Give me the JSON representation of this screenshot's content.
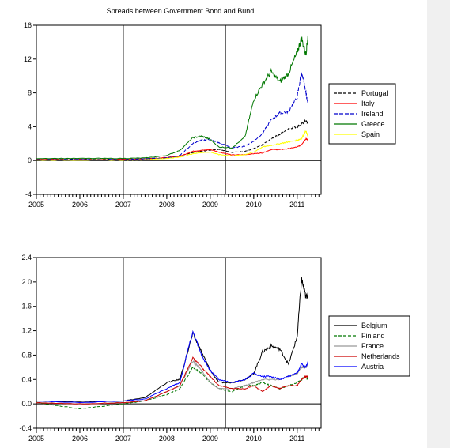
{
  "title": "Spreads between Government Bond and Bund",
  "chart_data": [
    {
      "type": "line",
      "title": "Spreads between Government Bond and Bund",
      "xlim": [
        2005.0,
        2011.55
      ],
      "ylim": [
        -4,
        16
      ],
      "yticks": [
        -4,
        0,
        4,
        8,
        12,
        16
      ],
      "xticks": [
        2005,
        2006,
        2007,
        2008,
        2009,
        2010,
        2011
      ],
      "vlines": [
        2007.0,
        2009.35
      ],
      "grid": false,
      "legend_position": "right",
      "series": [
        {
          "name": "Portugal",
          "color": "#000000",
          "dash": "4,2",
          "x": [
            2005.0,
            2006.0,
            2007.0,
            2007.5,
            2008.0,
            2008.3,
            2008.6,
            2008.8,
            2009.0,
            2009.2,
            2009.5,
            2009.8,
            2010.0,
            2010.2,
            2010.4,
            2010.6,
            2010.8,
            2011.0,
            2011.1,
            2011.2,
            2011.25
          ],
          "y": [
            0.15,
            0.15,
            0.15,
            0.2,
            0.35,
            0.5,
            0.95,
            1.1,
            1.25,
            1.35,
            0.95,
            1.1,
            1.4,
            1.85,
            2.6,
            3.1,
            3.8,
            4.0,
            4.3,
            4.7,
            4.3
          ]
        },
        {
          "name": "Italy",
          "color": "#ff0000",
          "dash": "",
          "x": [
            2005.0,
            2006.0,
            2007.0,
            2007.5,
            2008.0,
            2008.3,
            2008.6,
            2008.8,
            2009.0,
            2009.2,
            2009.5,
            2009.8,
            2010.0,
            2010.2,
            2010.4,
            2010.6,
            2010.8,
            2011.0,
            2011.1,
            2011.2,
            2011.25
          ],
          "y": [
            0.15,
            0.1,
            0.15,
            0.2,
            0.35,
            0.5,
            1.1,
            1.2,
            1.3,
            1.0,
            0.65,
            0.7,
            0.8,
            0.9,
            1.3,
            1.3,
            1.4,
            1.6,
            1.9,
            2.6,
            2.4
          ]
        },
        {
          "name": "Ireland",
          "color": "#0000cc",
          "dash": "5,2",
          "x": [
            2005.0,
            2006.0,
            2007.0,
            2007.5,
            2008.0,
            2008.3,
            2008.6,
            2008.8,
            2009.0,
            2009.2,
            2009.5,
            2009.8,
            2010.0,
            2010.2,
            2010.4,
            2010.6,
            2010.8,
            2011.0,
            2011.1,
            2011.2,
            2011.25
          ],
          "y": [
            0.1,
            0.1,
            0.1,
            0.2,
            0.3,
            0.6,
            2.0,
            2.4,
            2.5,
            2.1,
            1.5,
            1.7,
            2.3,
            3.2,
            4.8,
            5.6,
            5.8,
            7.5,
            10.5,
            8.0,
            6.8
          ]
        },
        {
          "name": "Greece",
          "color": "#007700",
          "dash": "",
          "x": [
            2005.0,
            2006.0,
            2007.0,
            2007.5,
            2008.0,
            2008.3,
            2008.6,
            2008.8,
            2009.0,
            2009.2,
            2009.5,
            2009.8,
            2010.0,
            2010.2,
            2010.4,
            2010.6,
            2010.8,
            2011.0,
            2011.1,
            2011.2,
            2011.25
          ],
          "y": [
            0.25,
            0.25,
            0.25,
            0.3,
            0.6,
            1.2,
            2.7,
            2.9,
            2.5,
            1.6,
            1.5,
            2.8,
            7.2,
            9.0,
            10.5,
            9.3,
            10.3,
            12.8,
            14.5,
            12.5,
            14.8
          ]
        },
        {
          "name": "Spain",
          "color": "#ffff00",
          "dash": "",
          "x": [
            2005.0,
            2006.0,
            2007.0,
            2007.5,
            2008.0,
            2008.3,
            2008.6,
            2008.8,
            2009.0,
            2009.2,
            2009.5,
            2009.8,
            2010.0,
            2010.2,
            2010.4,
            2010.6,
            2010.8,
            2011.0,
            2011.1,
            2011.2,
            2011.25
          ],
          "y": [
            0.05,
            0.05,
            0.05,
            0.1,
            0.25,
            0.4,
            0.8,
            0.95,
            1.0,
            0.7,
            0.55,
            0.7,
            1.0,
            1.6,
            1.8,
            2.0,
            2.2,
            2.4,
            2.6,
            3.5,
            2.8
          ]
        }
      ]
    },
    {
      "type": "line",
      "title": "",
      "xlim": [
        2005.0,
        2011.55
      ],
      "ylim": [
        -0.4,
        2.4
      ],
      "yticks": [
        -0.4,
        0.0,
        0.4,
        0.8,
        1.2,
        1.6,
        2.0,
        2.4
      ],
      "xticks": [
        2005,
        2006,
        2007,
        2008,
        2009,
        2010,
        2011
      ],
      "vlines": [
        2007.0,
        2009.35
      ],
      "grid": false,
      "legend_position": "right",
      "series": [
        {
          "name": "Belgium",
          "color": "#000000",
          "dash": "",
          "x": [
            2005.0,
            2006.0,
            2007.0,
            2007.5,
            2008.0,
            2008.3,
            2008.6,
            2008.8,
            2009.0,
            2009.2,
            2009.5,
            2009.8,
            2010.0,
            2010.2,
            2010.4,
            2010.6,
            2010.8,
            2011.0,
            2011.1,
            2011.2,
            2011.25
          ],
          "y": [
            0.05,
            0.03,
            0.05,
            0.1,
            0.35,
            0.4,
            1.15,
            0.85,
            0.55,
            0.35,
            0.35,
            0.4,
            0.5,
            0.85,
            0.95,
            0.9,
            0.65,
            1.1,
            2.05,
            1.75,
            1.8
          ]
        },
        {
          "name": "Finland",
          "color": "#007700",
          "dash": "4,2",
          "x": [
            2005.0,
            2006.0,
            2007.0,
            2007.5,
            2008.0,
            2008.3,
            2008.6,
            2008.8,
            2009.0,
            2009.2,
            2009.5,
            2009.8,
            2010.0,
            2010.2,
            2010.4,
            2010.6,
            2010.8,
            2011.0,
            2011.1,
            2011.2,
            2011.25
          ],
          "y": [
            0.02,
            -0.08,
            0.0,
            0.05,
            0.15,
            0.25,
            0.6,
            0.5,
            0.35,
            0.25,
            0.2,
            0.3,
            0.3,
            0.35,
            0.3,
            0.25,
            0.3,
            0.35,
            0.4,
            0.45,
            0.4
          ]
        },
        {
          "name": "France",
          "color": "#999999",
          "dash": "",
          "x": [
            2005.0,
            2006.0,
            2007.0,
            2007.5,
            2008.0,
            2008.3,
            2008.6,
            2008.8,
            2009.0,
            2009.2,
            2009.5,
            2009.8,
            2010.0,
            2010.2,
            2010.4,
            2010.6,
            2010.8,
            2011.0,
            2011.1,
            2011.2,
            2011.25
          ],
          "y": [
            0.02,
            0.0,
            0.02,
            0.05,
            0.2,
            0.3,
            0.7,
            0.55,
            0.35,
            0.25,
            0.25,
            0.3,
            0.35,
            0.4,
            0.4,
            0.4,
            0.45,
            0.5,
            0.6,
            0.6,
            0.65
          ]
        },
        {
          "name": "Netherlands",
          "color": "#cc0000",
          "dash": "",
          "x": [
            2005.0,
            2006.0,
            2007.0,
            2007.5,
            2008.0,
            2008.3,
            2008.6,
            2008.8,
            2009.0,
            2009.2,
            2009.5,
            2009.8,
            2010.0,
            2010.2,
            2010.4,
            2010.6,
            2010.8,
            2011.0,
            2011.1,
            2011.2,
            2011.25
          ],
          "y": [
            0.02,
            0.0,
            0.02,
            0.05,
            0.2,
            0.3,
            0.75,
            0.6,
            0.45,
            0.3,
            0.25,
            0.25,
            0.3,
            0.2,
            0.3,
            0.25,
            0.3,
            0.3,
            0.4,
            0.45,
            0.45
          ]
        },
        {
          "name": "Austria",
          "color": "#0000ff",
          "dash": "",
          "x": [
            2005.0,
            2006.0,
            2007.0,
            2007.5,
            2008.0,
            2008.3,
            2008.6,
            2008.8,
            2009.0,
            2009.2,
            2009.5,
            2009.8,
            2010.0,
            2010.2,
            2010.4,
            2010.6,
            2010.8,
            2011.0,
            2011.1,
            2011.2,
            2011.25
          ],
          "y": [
            0.05,
            0.02,
            0.05,
            0.08,
            0.25,
            0.35,
            1.2,
            0.8,
            0.55,
            0.4,
            0.35,
            0.4,
            0.5,
            0.45,
            0.45,
            0.4,
            0.45,
            0.5,
            0.65,
            0.6,
            0.7
          ]
        }
      ]
    }
  ]
}
